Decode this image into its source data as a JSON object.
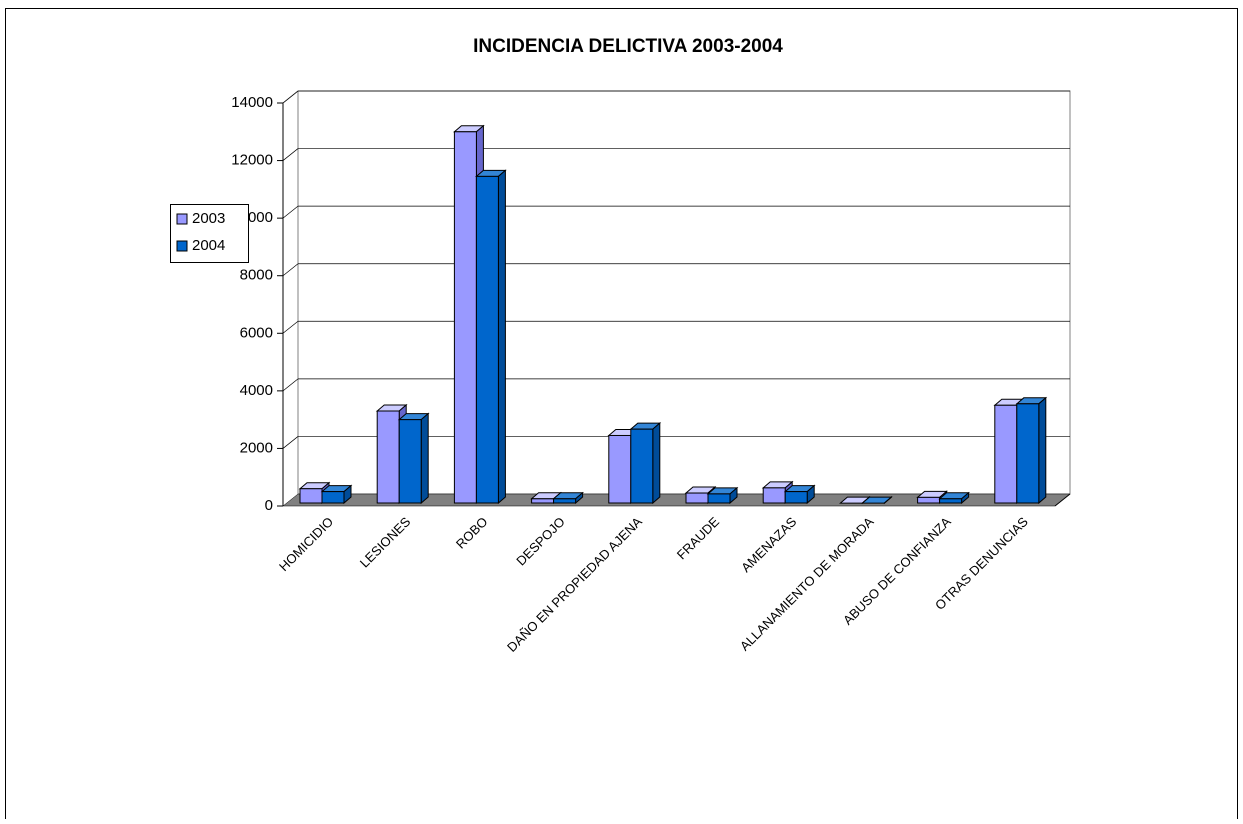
{
  "chart_data": {
    "type": "bar3d",
    "title": "INCIDENCIA DELICTIVA 2003-2004",
    "categories": [
      "HOMICIDIO",
      "LESIONES",
      "ROBO",
      "DESPOJO",
      "DAÑO EN PROPIEDAD AJENA",
      "FRAUDE",
      "AMENAZAS",
      "ALLANAMIENTO DE MORADA",
      "ABUSO DE CONFIANZA",
      "OTRAS DENUNCIAS"
    ],
    "series": [
      {
        "name": "2003",
        "color": "#9999ff",
        "values": [
          600,
          3300,
          13000,
          250,
          2450,
          450,
          630,
          100,
          300,
          3500
        ]
      },
      {
        "name": "2004",
        "color": "#0066cc",
        "values": [
          500,
          3000,
          11450,
          250,
          2670,
          420,
          500,
          100,
          250,
          3550
        ]
      }
    ],
    "ylim": [
      0,
      14000
    ],
    "yticks": [
      0,
      2000,
      4000,
      6000,
      8000,
      10000,
      12000,
      14000
    ],
    "grid": true,
    "legend": "left"
  }
}
